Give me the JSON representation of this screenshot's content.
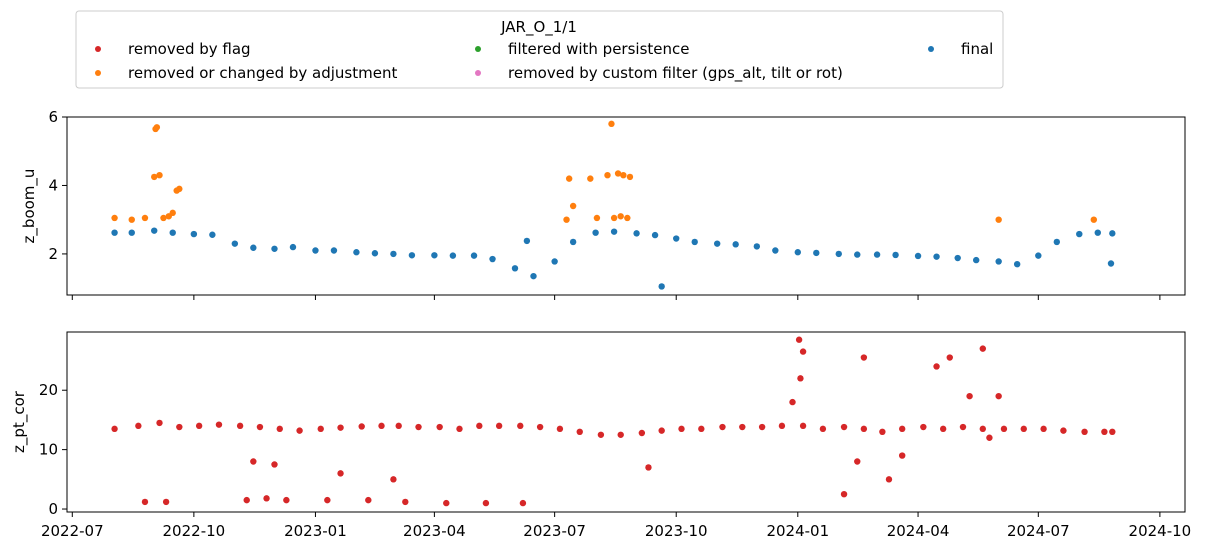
{
  "legend": {
    "title": "JAR_O_1/1",
    "items": [
      {
        "label": "removed by flag",
        "color": "#d62728"
      },
      {
        "label": "filtered with persistence",
        "color": "#2ca02c"
      },
      {
        "label": "final",
        "color": "#1f77b4"
      },
      {
        "label": "removed or changed by adjustment",
        "color": "#ff7f0e"
      },
      {
        "label": "removed by custom filter (gps_alt, tilt or rot)",
        "color": "#e377c2"
      }
    ]
  },
  "chart_data": [
    {
      "type": "scatter",
      "ylabel": "z_boom_u",
      "xlabel": "",
      "xlim": [
        "2022-06-27",
        "2024-10-20"
      ],
      "ylim": [
        0.8,
        6.0
      ],
      "yticks": [
        2,
        4,
        6
      ],
      "xticks": [
        "2022-07",
        "2022-10",
        "2023-01",
        "2023-04",
        "2023-07",
        "2023-10",
        "2024-01",
        "2024-04",
        "2024-07",
        "2024-10"
      ],
      "show_xticklabels": false,
      "series": [
        {
          "name": "final",
          "color": "#1f77b4",
          "x": [
            "2022-08-02",
            "2022-08-15",
            "2022-09-01",
            "2022-09-15",
            "2022-10-01",
            "2022-10-15",
            "2022-11-01",
            "2022-11-15",
            "2022-12-01",
            "2022-12-15",
            "2023-01-01",
            "2023-01-15",
            "2023-02-01",
            "2023-02-15",
            "2023-03-01",
            "2023-03-15",
            "2023-04-01",
            "2023-04-15",
            "2023-05-01",
            "2023-05-15",
            "2023-06-01",
            "2023-06-15",
            "2023-07-01",
            "2023-07-15",
            "2023-08-01",
            "2023-08-15",
            "2023-09-01",
            "2023-09-15",
            "2023-10-01",
            "2023-10-15",
            "2023-11-01",
            "2023-11-15",
            "2023-12-01",
            "2023-12-15",
            "2024-01-01",
            "2024-01-15",
            "2024-02-01",
            "2024-02-15",
            "2024-03-01",
            "2024-03-15",
            "2024-04-01",
            "2024-04-15",
            "2024-05-01",
            "2024-05-15",
            "2024-06-01",
            "2024-06-15",
            "2024-07-01",
            "2024-07-15",
            "2024-08-01",
            "2024-08-15",
            "2024-08-26",
            "2023-06-10",
            "2023-09-20",
            "2024-08-25"
          ],
          "values": [
            2.62,
            2.62,
            2.68,
            2.62,
            2.58,
            2.56,
            2.3,
            2.18,
            2.15,
            2.2,
            2.1,
            2.1,
            2.05,
            2.02,
            2.0,
            1.96,
            1.96,
            1.95,
            1.95,
            1.85,
            1.58,
            1.35,
            1.78,
            2.35,
            2.62,
            2.65,
            2.6,
            2.55,
            2.45,
            2.35,
            2.3,
            2.28,
            2.22,
            2.1,
            2.05,
            2.03,
            2.0,
            1.98,
            1.98,
            1.97,
            1.94,
            1.92,
            1.88,
            1.82,
            1.78,
            1.7,
            1.95,
            2.35,
            2.58,
            2.62,
            2.6,
            2.38,
            1.05,
            1.72
          ]
        },
        {
          "name": "removed or changed by adjustment",
          "color": "#ff7f0e",
          "x": [
            "2022-08-02",
            "2022-08-15",
            "2022-08-25",
            "2022-09-01",
            "2022-09-02",
            "2022-09-03",
            "2022-09-05",
            "2022-09-08",
            "2022-09-12",
            "2022-09-15",
            "2022-09-18",
            "2022-09-20",
            "2023-07-10",
            "2023-07-12",
            "2023-07-15",
            "2023-07-28",
            "2023-08-02",
            "2023-08-10",
            "2023-08-13",
            "2023-08-15",
            "2023-08-18",
            "2023-08-20",
            "2023-08-22",
            "2023-08-25",
            "2023-08-27",
            "2024-06-01",
            "2024-08-12"
          ],
          "values": [
            3.05,
            3.0,
            3.05,
            4.25,
            5.65,
            5.7,
            4.3,
            3.05,
            3.1,
            3.2,
            3.85,
            3.9,
            3.0,
            4.2,
            3.4,
            4.2,
            3.05,
            4.3,
            5.8,
            3.05,
            4.35,
            3.1,
            4.3,
            3.05,
            4.25,
            3.0,
            3.0
          ]
        }
      ]
    },
    {
      "type": "scatter",
      "ylabel": "z_pt_cor",
      "xlabel": "",
      "xlim": [
        "2022-06-27",
        "2024-10-20"
      ],
      "ylim": [
        -0.5,
        29.8
      ],
      "yticks": [
        0,
        10,
        20
      ],
      "xticks": [
        "2022-07",
        "2022-10",
        "2023-01",
        "2023-04",
        "2023-07",
        "2023-10",
        "2024-01",
        "2024-04",
        "2024-07",
        "2024-10"
      ],
      "show_xticklabels": true,
      "series": [
        {
          "name": "removed by flag",
          "color": "#d62728",
          "x": [
            "2022-08-02",
            "2022-08-20",
            "2022-09-05",
            "2022-09-20",
            "2022-10-05",
            "2022-10-20",
            "2022-11-05",
            "2022-11-20",
            "2022-12-05",
            "2022-12-20",
            "2023-01-05",
            "2023-01-20",
            "2023-02-05",
            "2023-02-20",
            "2023-03-05",
            "2023-03-20",
            "2023-04-05",
            "2023-04-20",
            "2023-05-05",
            "2023-05-20",
            "2023-06-05",
            "2023-06-20",
            "2023-07-05",
            "2023-07-20",
            "2023-08-05",
            "2023-08-20",
            "2023-09-05",
            "2023-09-20",
            "2023-10-05",
            "2023-10-20",
            "2023-11-05",
            "2023-11-20",
            "2023-12-05",
            "2023-12-20",
            "2024-01-05",
            "2024-01-20",
            "2024-02-05",
            "2024-02-20",
            "2024-03-05",
            "2024-03-20",
            "2024-04-05",
            "2024-04-20",
            "2024-05-05",
            "2024-05-20",
            "2024-06-05",
            "2024-06-20",
            "2024-07-05",
            "2024-07-20",
            "2024-08-05",
            "2024-08-20",
            "2024-08-26",
            "2022-08-25",
            "2022-09-10",
            "2022-11-10",
            "2022-11-25",
            "2022-12-10",
            "2023-01-10",
            "2023-02-10",
            "2023-03-10",
            "2023-04-10",
            "2023-05-10",
            "2023-06-07",
            "2022-11-15",
            "2022-12-01",
            "2023-01-20",
            "2023-03-01",
            "2023-09-10",
            "2023-12-28",
            "2024-01-02",
            "2024-01-03",
            "2024-01-05",
            "2024-02-15",
            "2024-03-20",
            "2024-04-15",
            "2024-04-25",
            "2024-05-10",
            "2024-05-20",
            "2024-05-25",
            "2024-06-01",
            "2024-02-05",
            "2024-02-20",
            "2024-03-10"
          ],
          "values": [
            13.5,
            14.0,
            14.5,
            13.8,
            14.0,
            14.2,
            14.0,
            13.8,
            13.5,
            13.2,
            13.5,
            13.7,
            13.9,
            14.0,
            14.0,
            13.8,
            13.8,
            13.5,
            14.0,
            14.0,
            14.0,
            13.8,
            13.5,
            13.0,
            12.5,
            12.5,
            12.8,
            13.2,
            13.5,
            13.5,
            13.8,
            13.8,
            13.8,
            14.0,
            14.0,
            13.5,
            13.8,
            13.5,
            13.0,
            13.5,
            13.8,
            13.5,
            13.8,
            13.5,
            13.5,
            13.5,
            13.5,
            13.2,
            13.0,
            13.0,
            13.0,
            1.2,
            1.2,
            1.5,
            1.8,
            1.5,
            1.5,
            1.5,
            1.2,
            1.0,
            1.0,
            1.0,
            8.0,
            7.5,
            6.0,
            5.0,
            7.0,
            18.0,
            28.5,
            22.0,
            26.5,
            8.0,
            9.0,
            24.0,
            25.5,
            19.0,
            27.0,
            12.0,
            19.0,
            2.5,
            25.5,
            5.0
          ]
        }
      ]
    }
  ]
}
